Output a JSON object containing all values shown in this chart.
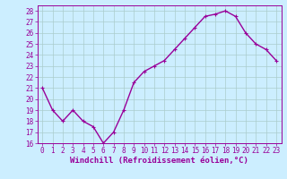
{
  "x": [
    0,
    1,
    2,
    3,
    4,
    5,
    6,
    7,
    8,
    9,
    10,
    11,
    12,
    13,
    14,
    15,
    16,
    17,
    18,
    19,
    20,
    21,
    22,
    23
  ],
  "y": [
    21.0,
    19.0,
    18.0,
    19.0,
    18.0,
    17.5,
    16.0,
    17.0,
    19.0,
    21.5,
    22.5,
    23.0,
    23.5,
    24.5,
    25.5,
    26.5,
    27.5,
    27.7,
    28.0,
    27.5,
    26.0,
    25.0,
    24.5,
    23.5
  ],
  "line_color": "#990099",
  "marker": "+",
  "marker_size": 3,
  "marker_linewidth": 0.8,
  "bg_color": "#cceeff",
  "grid_color": "#aacccc",
  "xlabel": "Windchill (Refroidissement éolien,°C)",
  "xlabel_fontsize": 6.5,
  "xlim": [
    -0.5,
    23.5
  ],
  "ylim": [
    16,
    28.5
  ],
  "yticks": [
    16,
    17,
    18,
    19,
    20,
    21,
    22,
    23,
    24,
    25,
    26,
    27,
    28
  ],
  "xticks": [
    0,
    1,
    2,
    3,
    4,
    5,
    6,
    7,
    8,
    9,
    10,
    11,
    12,
    13,
    14,
    15,
    16,
    17,
    18,
    19,
    20,
    21,
    22,
    23
  ],
  "tick_fontsize": 5.5,
  "linewidth": 1.0
}
